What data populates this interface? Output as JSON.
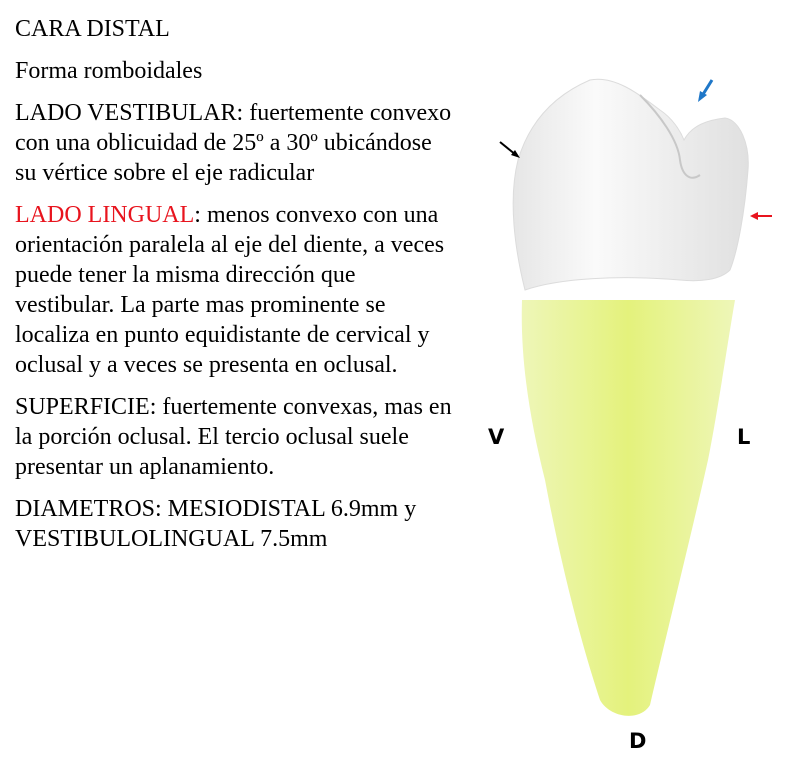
{
  "heading": "CARA DISTAL",
  "forma": "Forma romboidales",
  "vestibular": {
    "text": "LADO VESTIBULAR: fuertemente convexo con una oblicuidad de 25º a 30º ubicándose su vértice sobre el eje radicular"
  },
  "lingual": {
    "title": "LADO LINGUAL",
    "text": ": menos convexo con una orientación paralela al eje del diente, a veces puede tener la misma dirección que vestibular. La parte mas prominente se localiza en punto equidistante de cervical y oclusal y a veces se presenta en oclusal."
  },
  "superficie": "SUPERFICIE: fuertemente convexas, mas en la porción oclusal. El tercio oclusal suele presentar un aplanamiento.",
  "diametros": "DIAMETROS: MESIODISTAL 6.9mm y VESTIBULOLINGUAL 7.5mm",
  "figure": {
    "label_v": "V",
    "label_l": "L",
    "label_d": "D",
    "root_color": "#e8f48c",
    "crown_color": "#f4f4f4",
    "arrow_colors": {
      "black": "#000000",
      "blue": "#1f77c8",
      "red": "#e8141e"
    }
  }
}
